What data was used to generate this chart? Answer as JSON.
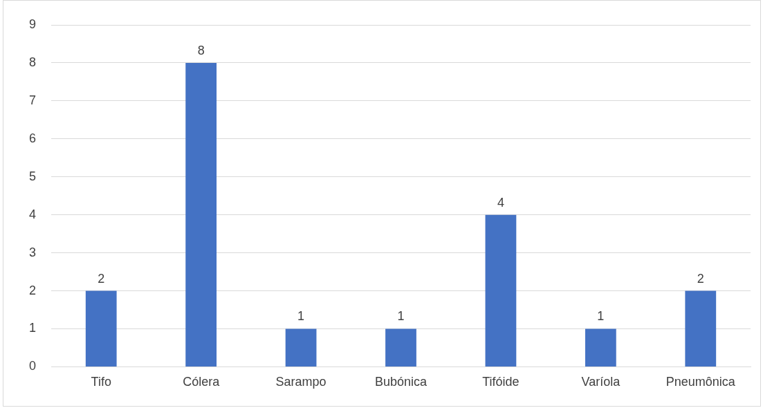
{
  "chart_data": {
    "type": "bar",
    "categories": [
      "Tifo",
      "Cólera",
      "Sarampo",
      "Bubónica",
      "Tifóide",
      "Varíola",
      "Pneumônica"
    ],
    "values": [
      2,
      8,
      1,
      1,
      4,
      1,
      2
    ],
    "color": "#4472c4",
    "ylim": [
      0,
      9
    ],
    "yticks": [
      0,
      1,
      2,
      3,
      4,
      5,
      6,
      7,
      8,
      9
    ],
    "grid": "y",
    "data_labels": true,
    "legend": false
  }
}
